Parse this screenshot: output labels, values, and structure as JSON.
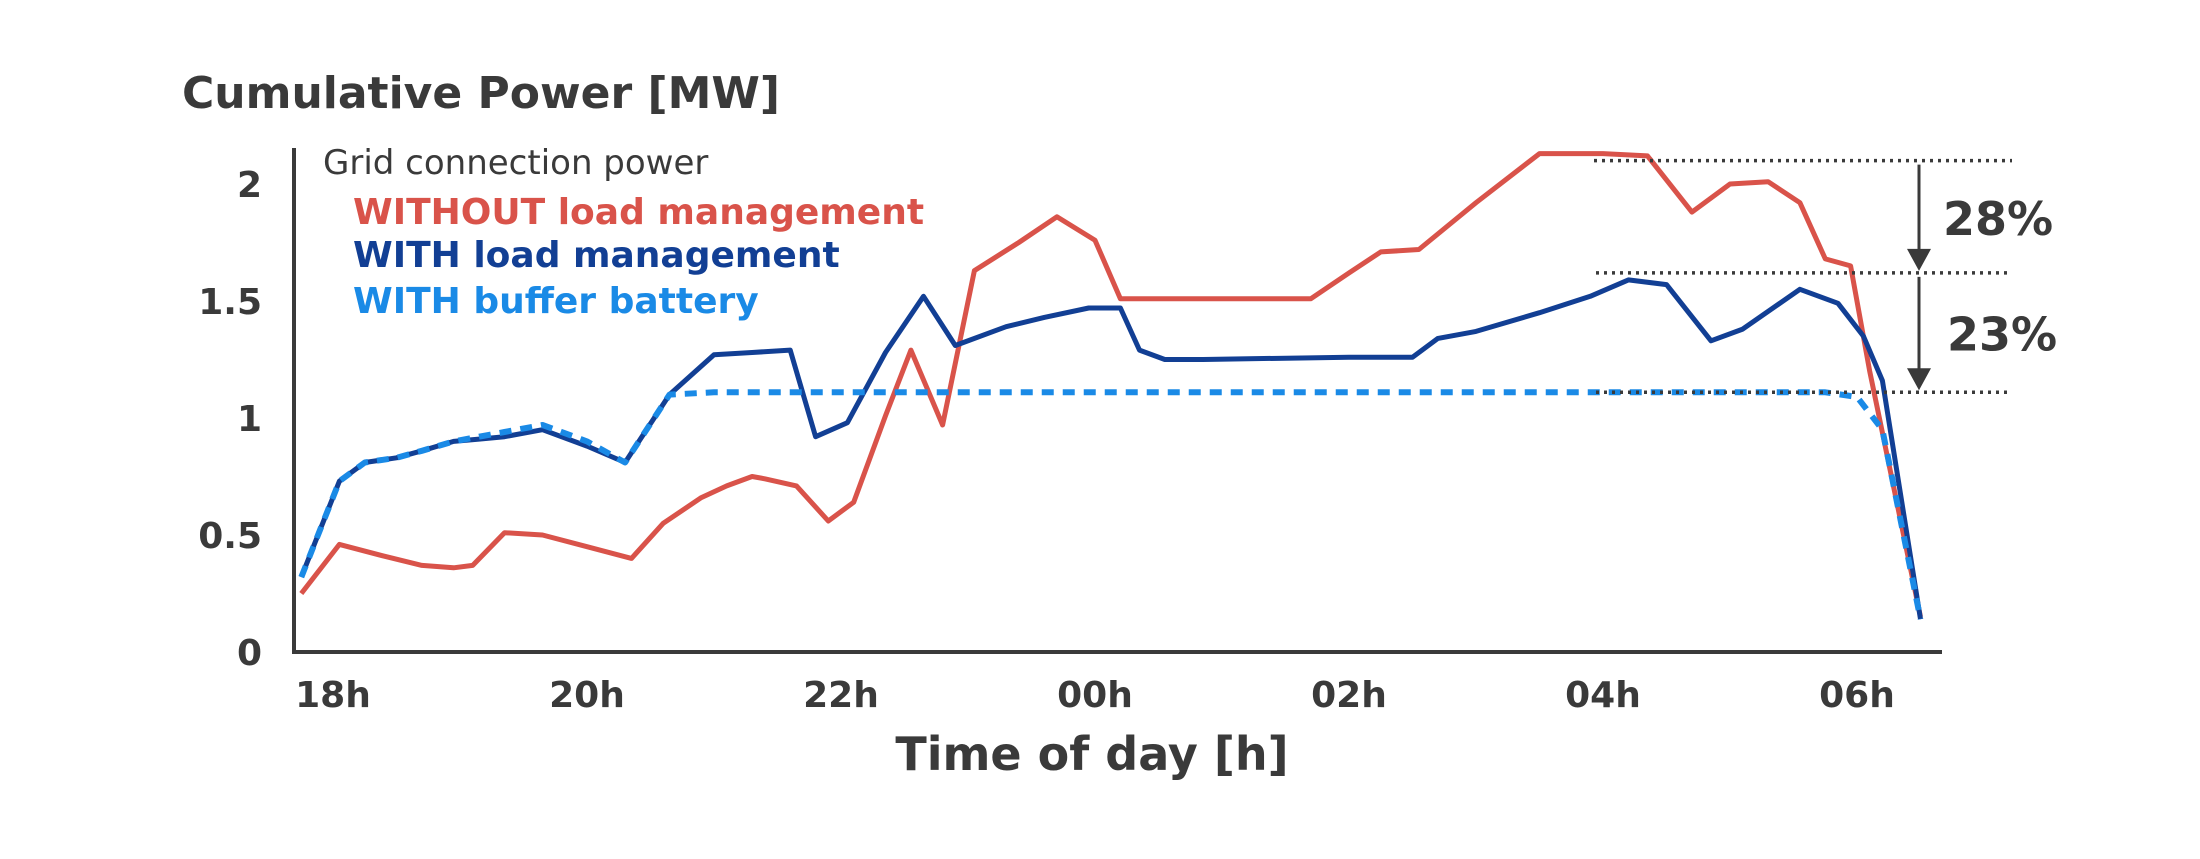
{
  "chart_data": {
    "type": "line",
    "title": "Cumulative Power [MW]",
    "xlabel": "Time of day [h]",
    "ylabel": "",
    "x_tick_labels": [
      "18h",
      "20h",
      "22h",
      "00h",
      "02h",
      "04h",
      "06h"
    ],
    "x_tick_hours": [
      18,
      20,
      22,
      24,
      26,
      28,
      30
    ],
    "xlim_hours": [
      17.75,
      30.7
    ],
    "y_tick_labels": [
      "0",
      "0.5",
      "1",
      "1.5",
      "2"
    ],
    "y_tick_values": [
      0,
      0.5,
      1,
      1.5,
      2
    ],
    "ylim": [
      0,
      2.15
    ],
    "grid": false,
    "legend": {
      "title": "Grid connection power",
      "placement": "top-left"
    },
    "annotations": [
      {
        "label": "28%",
        "from_value": 2.1,
        "to_value": 1.62
      },
      {
        "label": "23%",
        "from_value": 1.62,
        "to_value": 1.11
      }
    ],
    "series": [
      {
        "name": "WITHOUT load management",
        "color": "#d9534a",
        "style": "solid",
        "x": [
          17.75,
          18.05,
          18.4,
          18.7,
          18.95,
          19.1,
          19.35,
          19.65,
          20.0,
          20.35,
          20.6,
          20.9,
          21.1,
          21.3,
          21.4,
          21.65,
          21.9,
          22.1,
          22.35,
          22.55,
          22.8,
          23.05,
          23.4,
          23.7,
          24.0,
          24.2,
          24.4,
          25.0,
          25.7,
          26.0,
          26.25,
          26.55,
          27.0,
          27.5,
          28.0,
          28.35,
          28.7,
          29.0,
          29.3,
          29.55,
          29.75,
          29.95,
          30.1,
          30.5
        ],
        "y": [
          0.25,
          0.46,
          0.41,
          0.37,
          0.36,
          0.37,
          0.51,
          0.5,
          0.45,
          0.4,
          0.55,
          0.66,
          0.71,
          0.75,
          0.74,
          0.71,
          0.56,
          0.64,
          1.01,
          1.29,
          0.97,
          1.63,
          1.75,
          1.86,
          1.76,
          1.51,
          1.51,
          1.51,
          1.51,
          1.62,
          1.71,
          1.72,
          1.92,
          2.13,
          2.13,
          2.12,
          1.88,
          2.0,
          2.01,
          1.92,
          1.68,
          1.65,
          1.2,
          0.15
        ]
      },
      {
        "name": "WITH load management",
        "color": "#123f94",
        "style": "solid",
        "x": [
          17.75,
          18.05,
          18.25,
          18.5,
          18.7,
          18.95,
          19.15,
          19.35,
          19.65,
          20.0,
          20.3,
          20.65,
          21.0,
          21.3,
          21.6,
          21.8,
          22.05,
          22.35,
          22.65,
          22.9,
          23.3,
          23.6,
          23.95,
          24.2,
          24.35,
          24.55,
          24.85,
          26.0,
          26.5,
          26.7,
          27.0,
          27.5,
          27.9,
          28.2,
          28.5,
          28.85,
          29.1,
          29.55,
          29.85,
          30.05,
          30.2,
          30.5
        ],
        "y": [
          0.32,
          0.73,
          0.81,
          0.83,
          0.86,
          0.9,
          0.91,
          0.92,
          0.95,
          0.88,
          0.81,
          1.1,
          1.27,
          1.28,
          1.29,
          0.92,
          0.98,
          1.28,
          1.52,
          1.31,
          1.39,
          1.43,
          1.47,
          1.47,
          1.29,
          1.25,
          1.25,
          1.26,
          1.26,
          1.34,
          1.37,
          1.45,
          1.52,
          1.59,
          1.57,
          1.33,
          1.38,
          1.55,
          1.49,
          1.35,
          1.16,
          0.14
        ]
      },
      {
        "name": "WITH buffer battery",
        "color": "#1a8ae6",
        "style": "dashed",
        "x": [
          17.75,
          18.05,
          18.25,
          18.5,
          18.7,
          18.95,
          19.15,
          19.35,
          19.65,
          20.0,
          20.3,
          20.65,
          21.0,
          22.0,
          23.0,
          24.0,
          25.0,
          26.0,
          27.0,
          28.0,
          29.0,
          29.75,
          30.0,
          30.2,
          30.5
        ],
        "y": [
          0.32,
          0.73,
          0.81,
          0.83,
          0.86,
          0.9,
          0.92,
          0.94,
          0.97,
          0.9,
          0.81,
          1.1,
          1.11,
          1.11,
          1.11,
          1.11,
          1.11,
          1.11,
          1.11,
          1.11,
          1.11,
          1.11,
          1.09,
          0.95,
          0.14
        ]
      }
    ]
  }
}
